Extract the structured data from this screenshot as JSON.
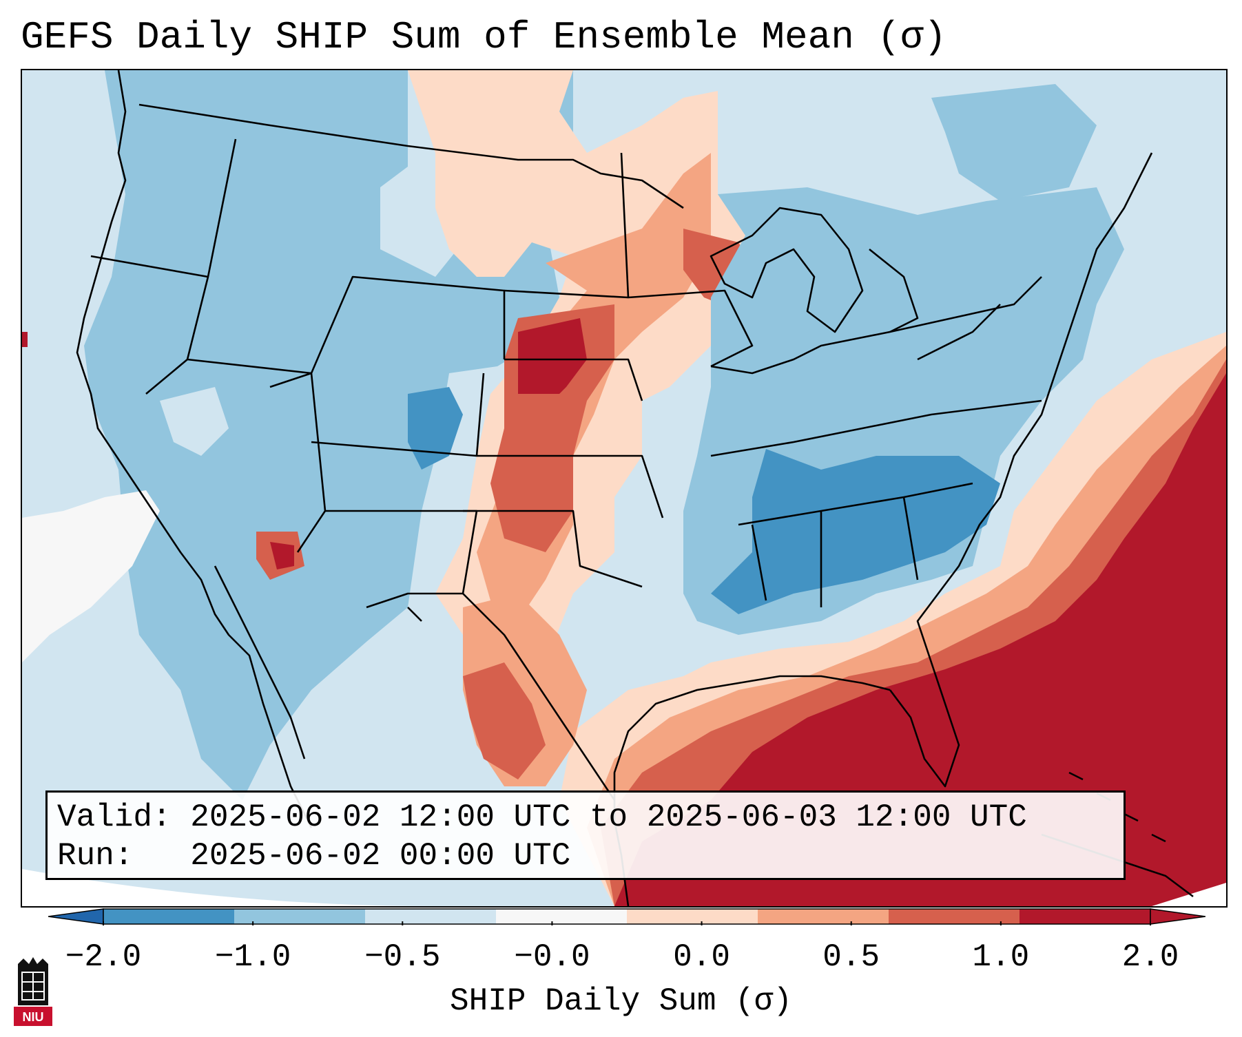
{
  "header": {
    "title": "GEFS Daily SHIP Sum of Ensemble Mean (σ)"
  },
  "info": {
    "valid_label": "Valid:",
    "valid_value": "2025-06-02 12:00 UTC to 2025-06-03 12:00 UTC",
    "run_label": "Run:",
    "run_value": "2025-06-02 00:00 UTC"
  },
  "colorbar": {
    "label": "SHIP Daily Sum (σ)",
    "ticks": [
      "−2.0",
      "−1.0",
      "−0.5",
      "−0.0",
      "0.0",
      "0.5",
      "1.0",
      "2.0"
    ],
    "colors": [
      "#4393c3",
      "#92c5de",
      "#d1e5f0",
      "#f7f7f7",
      "#fddbc7",
      "#f4a582",
      "#d6604d",
      "#b2182b"
    ],
    "under_color": "#2166ac",
    "over_color": "#b2182b"
  },
  "logo": {
    "text": "NIU",
    "color": "#c8102e"
  }
}
